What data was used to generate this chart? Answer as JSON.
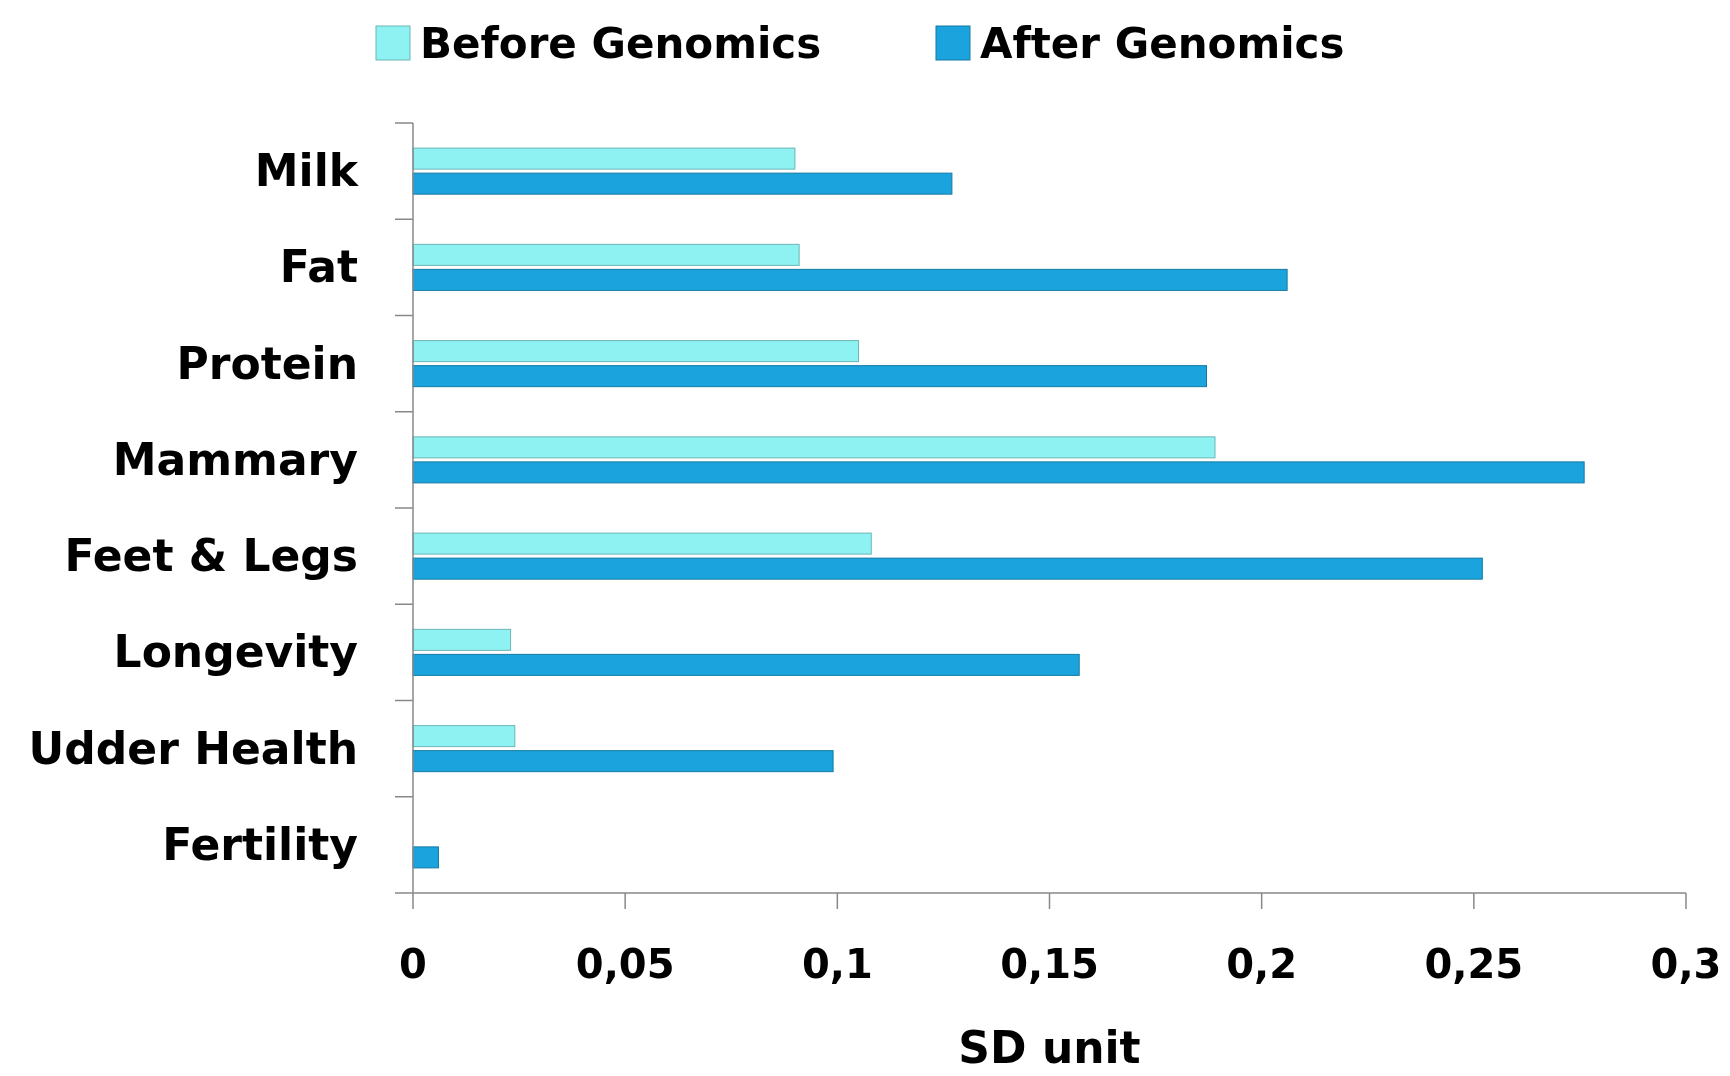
{
  "chart_data": {
    "type": "bar",
    "orientation": "horizontal",
    "xlabel": "SD unit",
    "categories": [
      "Milk",
      "Fat",
      "Protein",
      "Mammary",
      "Feet & Legs",
      "Longevity",
      "Udder Health",
      "Fertility"
    ],
    "series": [
      {
        "name": "Before Genomics",
        "color": "#8ff2f2",
        "values": [
          0.09,
          0.091,
          0.105,
          0.189,
          0.108,
          0.023,
          0.024,
          0
        ]
      },
      {
        "name": "After Genomics",
        "color": "#1aa3dc",
        "values": [
          0.127,
          0.206,
          0.187,
          0.276,
          0.252,
          0.157,
          0.099,
          0.006
        ]
      }
    ],
    "xlim": [
      0,
      0.3
    ],
    "xticks": [
      {
        "value": 0,
        "label": "0"
      },
      {
        "value": 0.05,
        "label": "0,05"
      },
      {
        "value": 0.1,
        "label": "0,1"
      },
      {
        "value": 0.15,
        "label": "0,15"
      },
      {
        "value": 0.2,
        "label": "0,2"
      },
      {
        "value": 0.25,
        "label": "0,25"
      },
      {
        "value": 0.3,
        "label": "0,3"
      }
    ],
    "grid": false,
    "legend": "top"
  }
}
